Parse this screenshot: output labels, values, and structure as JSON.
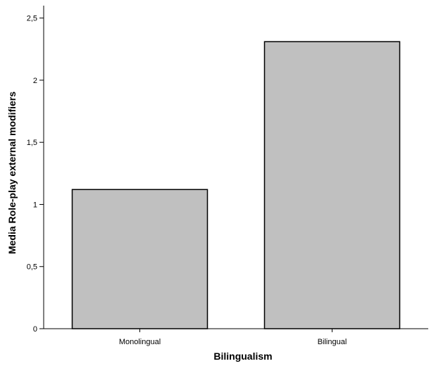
{
  "chart_data": {
    "type": "bar",
    "categories": [
      "Monolingual",
      "Bilingual"
    ],
    "values": [
      1.12,
      2.31
    ],
    "xlabel": "Bilingualism",
    "ylabel": "Media Role-play external modifiers",
    "ylim": [
      0,
      2.6
    ],
    "yticks": [
      "0",
      "0,5",
      "1",
      "1,5",
      "2",
      "2,5"
    ],
    "ytick_values": [
      0,
      0.5,
      1,
      1.5,
      2,
      2.5
    ],
    "grid": false,
    "bar_color": "#c0c0c0",
    "bar_edge_color": "#000000"
  }
}
